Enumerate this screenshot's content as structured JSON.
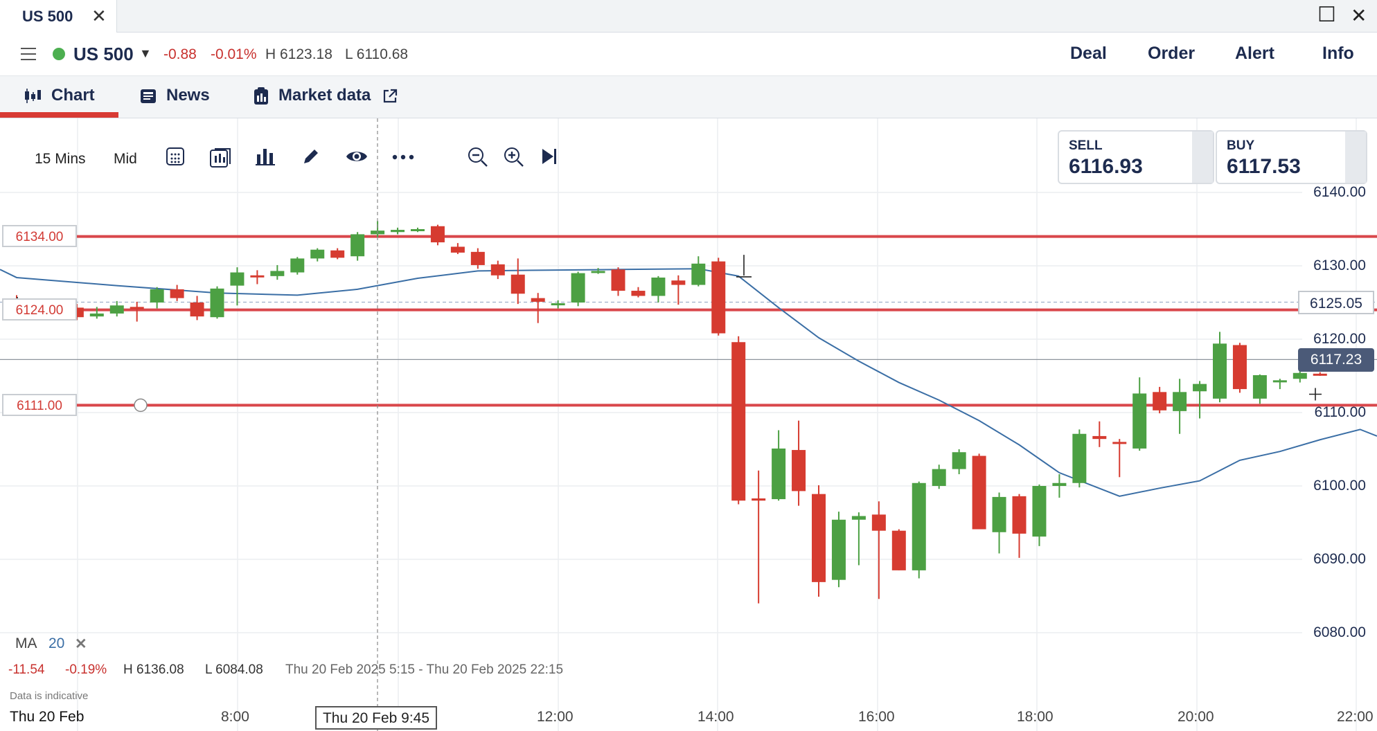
{
  "window": {
    "tab_title": "US 500",
    "tab_close": "✕",
    "maximize": "☐",
    "close": "✕"
  },
  "header": {
    "instrument": "US 500",
    "change": "-0.88",
    "change_pct": "-0.01%",
    "high": "H 6123.18",
    "low": "L 6110.68",
    "buttons": [
      "Deal",
      "Order",
      "Alert",
      "Info"
    ],
    "status_color": "#4caf50"
  },
  "view_tabs": {
    "chart": "Chart",
    "news": "News",
    "market_data": "Market data"
  },
  "toolbar": {
    "interval": "15 Mins",
    "price_type": "Mid",
    "icons": [
      "calendar-icon",
      "chart-type-icon",
      "indicators-icon",
      "draw-icon",
      "eye-icon",
      "more-icon",
      "zoom-out-icon",
      "zoom-in-icon",
      "jump-to-latest-icon"
    ]
  },
  "quotes": {
    "sell_label": "SELL",
    "sell_value": "6116.93",
    "buy_label": "BUY",
    "buy_value": "6117.53"
  },
  "levels": {
    "level1": "6134.00",
    "level2": "6124.00",
    "level3": "6111.00"
  },
  "price_labels": {
    "reference": "6125.05",
    "current": "6117.23"
  },
  "indicator": {
    "name": "MA",
    "period": "20",
    "remove": "✕"
  },
  "stats": {
    "change": "-11.54",
    "change_pct": "-0.19%",
    "high": "H 6136.08",
    "low": "L 6084.08",
    "range": "Thu 20 Feb 2025 5:15 - Thu 20 Feb 2025 22:15"
  },
  "disclaimer": "Data is indicative",
  "crosshair_label": "Thu 20 Feb 9:45",
  "colors": {
    "up": "#4ca043",
    "down": "#d63b30",
    "level_line": "#d9474b",
    "ma_line": "#3a6ea5",
    "accent": "#d83a34"
  },
  "chart_data": {
    "type": "candlestick",
    "y_ticks": [
      "6140.00",
      "6130.00",
      "6120.00",
      "6110.00",
      "6100.00",
      "6090.00",
      "6080.00"
    ],
    "ylim": [
      6074,
      6145
    ],
    "x_ticks": [
      "Thu 20 Feb",
      "8:00",
      "12:00",
      "14:00",
      "16:00",
      "18:00",
      "20:00",
      "22:00"
    ],
    "candles": [
      {
        "o": 6125.5,
        "h": 6126.0,
        "l": 6124.3,
        "c": 6124.6
      },
      {
        "o": 6124.8,
        "h": 6125.2,
        "l": 6123.5,
        "c": 6124.0
      },
      {
        "o": 6124.0,
        "h": 6124.6,
        "l": 6123.0,
        "c": 6124.4
      },
      {
        "o": 6124.3,
        "h": 6124.8,
        "l": 6122.6,
        "c": 6123.0
      },
      {
        "o": 6123.1,
        "h": 6124.4,
        "l": 6122.8,
        "c": 6123.5
      },
      {
        "o": 6123.5,
        "h": 6125.2,
        "l": 6123.1,
        "c": 6124.6
      },
      {
        "o": 6124.4,
        "h": 6125.1,
        "l": 6122.4,
        "c": 6124.1
      },
      {
        "o": 6125.0,
        "h": 6127.1,
        "l": 6124.2,
        "c": 6126.8
      },
      {
        "o": 6126.8,
        "h": 6127.4,
        "l": 6125.2,
        "c": 6125.6
      },
      {
        "o": 6125.0,
        "h": 6125.9,
        "l": 6122.6,
        "c": 6123.1
      },
      {
        "o": 6123.0,
        "h": 6127.2,
        "l": 6122.8,
        "c": 6126.9
      },
      {
        "o": 6127.3,
        "h": 6129.8,
        "l": 6124.6,
        "c": 6129.1
      },
      {
        "o": 6128.7,
        "h": 6129.4,
        "l": 6127.5,
        "c": 6128.5
      },
      {
        "o": 6128.6,
        "h": 6130.1,
        "l": 6128.1,
        "c": 6129.3
      },
      {
        "o": 6129.1,
        "h": 6131.2,
        "l": 6128.8,
        "c": 6131.0
      },
      {
        "o": 6131.0,
        "h": 6132.4,
        "l": 6130.6,
        "c": 6132.2
      },
      {
        "o": 6132.1,
        "h": 6132.4,
        "l": 6130.9,
        "c": 6131.1
      },
      {
        "o": 6131.3,
        "h": 6134.6,
        "l": 6130.7,
        "c": 6134.3
      },
      {
        "o": 6134.3,
        "h": 6136.1,
        "l": 6133.9,
        "c": 6134.8
      },
      {
        "o": 6134.6,
        "h": 6135.2,
        "l": 6134.3,
        "c": 6134.9
      },
      {
        "o": 6134.8,
        "h": 6135.2,
        "l": 6134.6,
        "c": 6135.0
      },
      {
        "o": 6135.4,
        "h": 6135.6,
        "l": 6132.8,
        "c": 6133.2
      },
      {
        "o": 6132.6,
        "h": 6133.1,
        "l": 6131.6,
        "c": 6131.8
      },
      {
        "o": 6131.9,
        "h": 6132.4,
        "l": 6129.6,
        "c": 6130.1
      },
      {
        "o": 6130.2,
        "h": 6130.7,
        "l": 6128.2,
        "c": 6128.7
      },
      {
        "o": 6128.8,
        "h": 6131.0,
        "l": 6124.8,
        "c": 6126.2
      },
      {
        "o": 6125.6,
        "h": 6126.3,
        "l": 6122.2,
        "c": 6125.1
      },
      {
        "o": 6124.7,
        "h": 6125.3,
        "l": 6124.2,
        "c": 6124.9
      },
      {
        "o": 6125.0,
        "h": 6129.2,
        "l": 6124.5,
        "c": 6129.0
      },
      {
        "o": 6129.1,
        "h": 6129.7,
        "l": 6128.9,
        "c": 6129.3
      },
      {
        "o": 6129.5,
        "h": 6129.8,
        "l": 6125.9,
        "c": 6126.6
      },
      {
        "o": 6126.6,
        "h": 6127.1,
        "l": 6125.7,
        "c": 6125.9
      },
      {
        "o": 6125.9,
        "h": 6128.6,
        "l": 6125.0,
        "c": 6128.4
      },
      {
        "o": 6128.0,
        "h": 6128.7,
        "l": 6124.7,
        "c": 6127.4
      },
      {
        "o": 6127.4,
        "h": 6131.3,
        "l": 6127.2,
        "c": 6130.3
      },
      {
        "o": 6130.6,
        "h": 6131.1,
        "l": 6120.5,
        "c": 6120.8
      },
      {
        "o": 6119.6,
        "h": 6120.4,
        "l": 6097.5,
        "c": 6098.0
      },
      {
        "o": 6098.3,
        "h": 6102.1,
        "l": 6084.0,
        "c": 6098.0
      },
      {
        "o": 6098.2,
        "h": 6107.6,
        "l": 6098.0,
        "c": 6105.1
      },
      {
        "o": 6104.9,
        "h": 6108.9,
        "l": 6097.3,
        "c": 6099.3
      },
      {
        "o": 6098.9,
        "h": 6100.1,
        "l": 6084.9,
        "c": 6086.9
      },
      {
        "o": 6087.2,
        "h": 6096.5,
        "l": 6086.2,
        "c": 6095.4
      },
      {
        "o": 6095.4,
        "h": 6096.4,
        "l": 6089.2,
        "c": 6095.9
      },
      {
        "o": 6096.1,
        "h": 6097.9,
        "l": 6084.6,
        "c": 6093.9
      },
      {
        "o": 6093.9,
        "h": 6094.1,
        "l": 6088.5,
        "c": 6088.5
      },
      {
        "o": 6088.5,
        "h": 6100.6,
        "l": 6087.4,
        "c": 6100.4
      },
      {
        "o": 6100.0,
        "h": 6102.9,
        "l": 6099.6,
        "c": 6102.3
      },
      {
        "o": 6102.3,
        "h": 6105.0,
        "l": 6101.6,
        "c": 6104.6
      },
      {
        "o": 6104.1,
        "h": 6104.4,
        "l": 6094.1,
        "c": 6094.1
      },
      {
        "o": 6093.7,
        "h": 6099.1,
        "l": 6090.8,
        "c": 6098.5
      },
      {
        "o": 6098.6,
        "h": 6098.9,
        "l": 6090.2,
        "c": 6093.5
      },
      {
        "o": 6093.1,
        "h": 6100.2,
        "l": 6091.8,
        "c": 6100.0
      },
      {
        "o": 6100.0,
        "h": 6101.6,
        "l": 6098.4,
        "c": 6100.4
      },
      {
        "o": 6100.4,
        "h": 6107.7,
        "l": 6099.8,
        "c": 6107.1
      },
      {
        "o": 6106.8,
        "h": 6108.8,
        "l": 6105.3,
        "c": 6106.4
      },
      {
        "o": 6106.0,
        "h": 6106.4,
        "l": 6101.2,
        "c": 6105.8
      },
      {
        "o": 6105.1,
        "h": 6114.8,
        "l": 6104.8,
        "c": 6112.6
      },
      {
        "o": 6112.8,
        "h": 6113.5,
        "l": 6109.9,
        "c": 6110.3
      },
      {
        "o": 6110.2,
        "h": 6114.6,
        "l": 6107.1,
        "c": 6112.8
      },
      {
        "o": 6112.9,
        "h": 6114.3,
        "l": 6109.2,
        "c": 6113.9
      },
      {
        "o": 6111.9,
        "h": 6121.0,
        "l": 6111.4,
        "c": 6119.4
      },
      {
        "o": 6119.2,
        "h": 6119.5,
        "l": 6112.7,
        "c": 6113.2
      },
      {
        "o": 6111.9,
        "h": 6115.2,
        "l": 6111.2,
        "c": 6115.1
      },
      {
        "o": 6114.2,
        "h": 6114.6,
        "l": 6113.2,
        "c": 6114.4
      },
      {
        "o": 6114.6,
        "h": 6115.8,
        "l": 6114.1,
        "c": 6115.4
      },
      {
        "o": 6115.3,
        "h": 6115.5,
        "l": 6115.0,
        "c": 6115.2
      }
    ],
    "moving_average": {
      "name": "MA 20",
      "points": [
        [
          0,
          6128.4
        ],
        [
          5,
          6127.3
        ],
        [
          10,
          6126.3
        ],
        [
          14,
          6126.0
        ],
        [
          17,
          6126.8
        ],
        [
          20,
          6128.3
        ],
        [
          23,
          6129.3
        ],
        [
          26,
          6129.4
        ],
        [
          30,
          6129.5
        ],
        [
          34,
          6129.6
        ],
        [
          36,
          6128.6
        ],
        [
          38,
          6124.3
        ],
        [
          40,
          6120.2
        ],
        [
          42,
          6117.0
        ],
        [
          44,
          6114.1
        ],
        [
          46,
          6111.7
        ],
        [
          48,
          6108.9
        ],
        [
          50,
          6105.6
        ],
        [
          52,
          6101.8
        ],
        [
          55,
          6098.6
        ],
        [
          57,
          6099.7
        ],
        [
          59,
          6100.7
        ],
        [
          61,
          6103.5
        ],
        [
          63,
          6104.7
        ],
        [
          65,
          6106.3
        ],
        [
          67,
          6107.7
        ]
      ]
    }
  }
}
